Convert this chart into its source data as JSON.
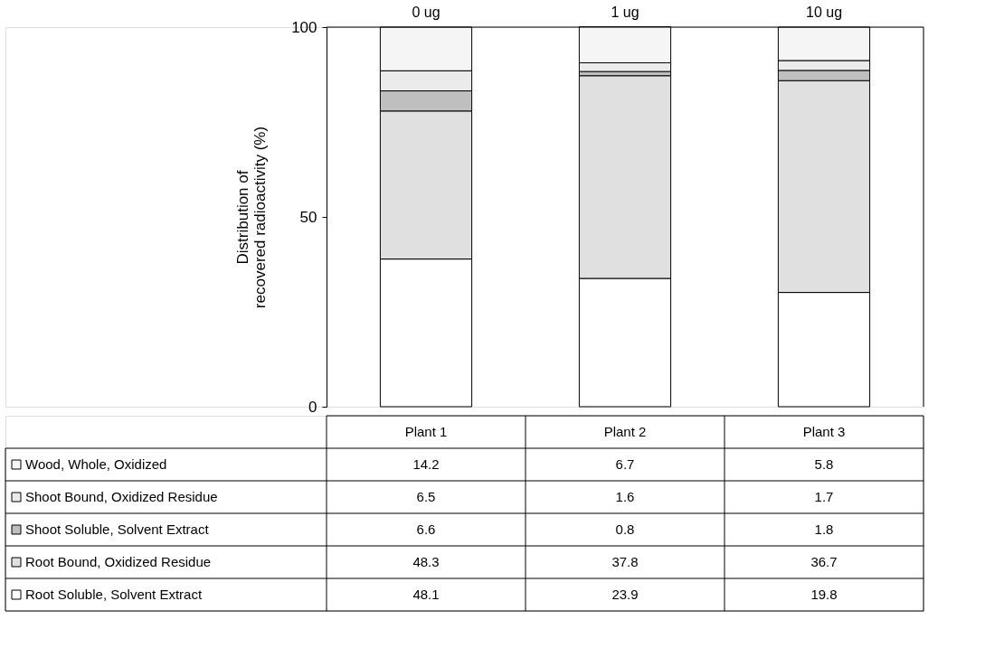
{
  "chart_data": [
    {
      "type": "bar",
      "stacked": true,
      "ylabel": "Distribution of\nrecovered radioactivity (%)",
      "categories": [
        "0 ug",
        "1 ug",
        "10 ug"
      ],
      "series": [
        {
          "color": "#ffffff",
          "values": [
            38.9,
            33.8,
            30.1
          ]
        },
        {
          "color": "#e0e0e0",
          "values": [
            39.0,
            53.4,
            55.8
          ]
        },
        {
          "color": "#bfbfbf",
          "values": [
            5.3,
            1.1,
            2.7
          ]
        },
        {
          "color": "#ebebeb",
          "values": [
            5.3,
            2.3,
            2.6
          ]
        },
        {
          "color": "#f5f5f5",
          "values": [
            11.5,
            9.5,
            8.8
          ]
        }
      ],
      "ylim": [
        0,
        100
      ],
      "yticks": [
        0,
        50,
        100
      ]
    },
    {
      "type": "other",
      "data_labels": true,
      "legend": "left",
      "categories": [
        "Plant 1",
        "Plant 2",
        "Plant 3"
      ],
      "series": [
        {
          "name": "Wood, Whole, Oxidized",
          "color": "#f5f5f5",
          "values": [
            14.2,
            6.7,
            5.8
          ]
        },
        {
          "name": "Shoot Bound, Oxidized Residue",
          "color": "#ebebeb",
          "values": [
            6.5,
            1.6,
            1.7
          ]
        },
        {
          "name": "Shoot Soluble, Solvent Extract",
          "color": "#bfbfbf",
          "values": [
            6.6,
            0.8,
            1.8
          ]
        },
        {
          "name": "Root Bound, Oxidized Residue",
          "color": "#e0e0e0",
          "values": [
            48.3,
            37.8,
            36.7
          ]
        },
        {
          "name": "Root Soluble, Solvent Extract",
          "color": "#ffffff",
          "values": [
            48.1,
            23.9,
            19.8
          ]
        }
      ]
    }
  ]
}
